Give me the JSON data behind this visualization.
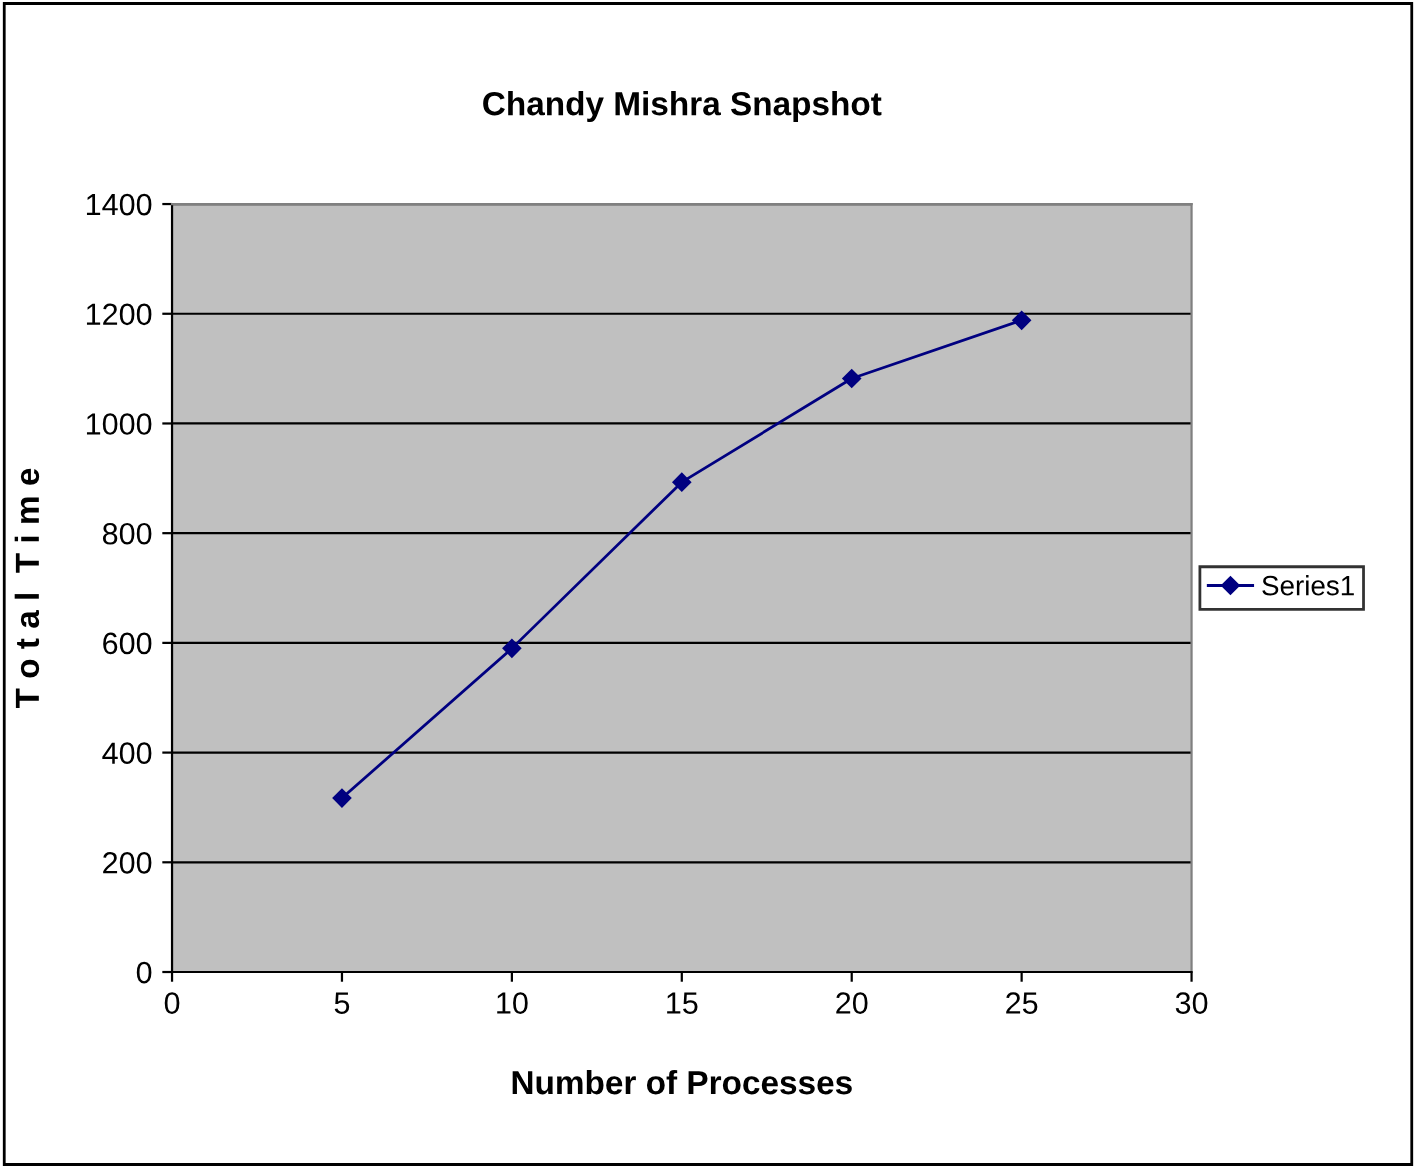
{
  "chart_data": {
    "type": "line",
    "title": "Chandy Mishra Snapshot",
    "xlabel": "Number of Processes",
    "ylabel": "T o t a l  T i m e",
    "x": [
      5,
      10,
      15,
      20,
      25
    ],
    "series": [
      {
        "name": "Series1",
        "color": "#000080",
        "values": [
          317,
          590,
          893,
          1082,
          1188
        ]
      }
    ],
    "xlim": [
      0,
      30
    ],
    "xticks": [
      0,
      5,
      10,
      15,
      20,
      25,
      30
    ],
    "ylim": [
      0,
      1400
    ],
    "yticks": [
      0,
      200,
      400,
      600,
      800,
      1000,
      1200,
      1400
    ],
    "grid": "y",
    "legend": "right",
    "marker": "diamond",
    "line_style": "solid"
  }
}
